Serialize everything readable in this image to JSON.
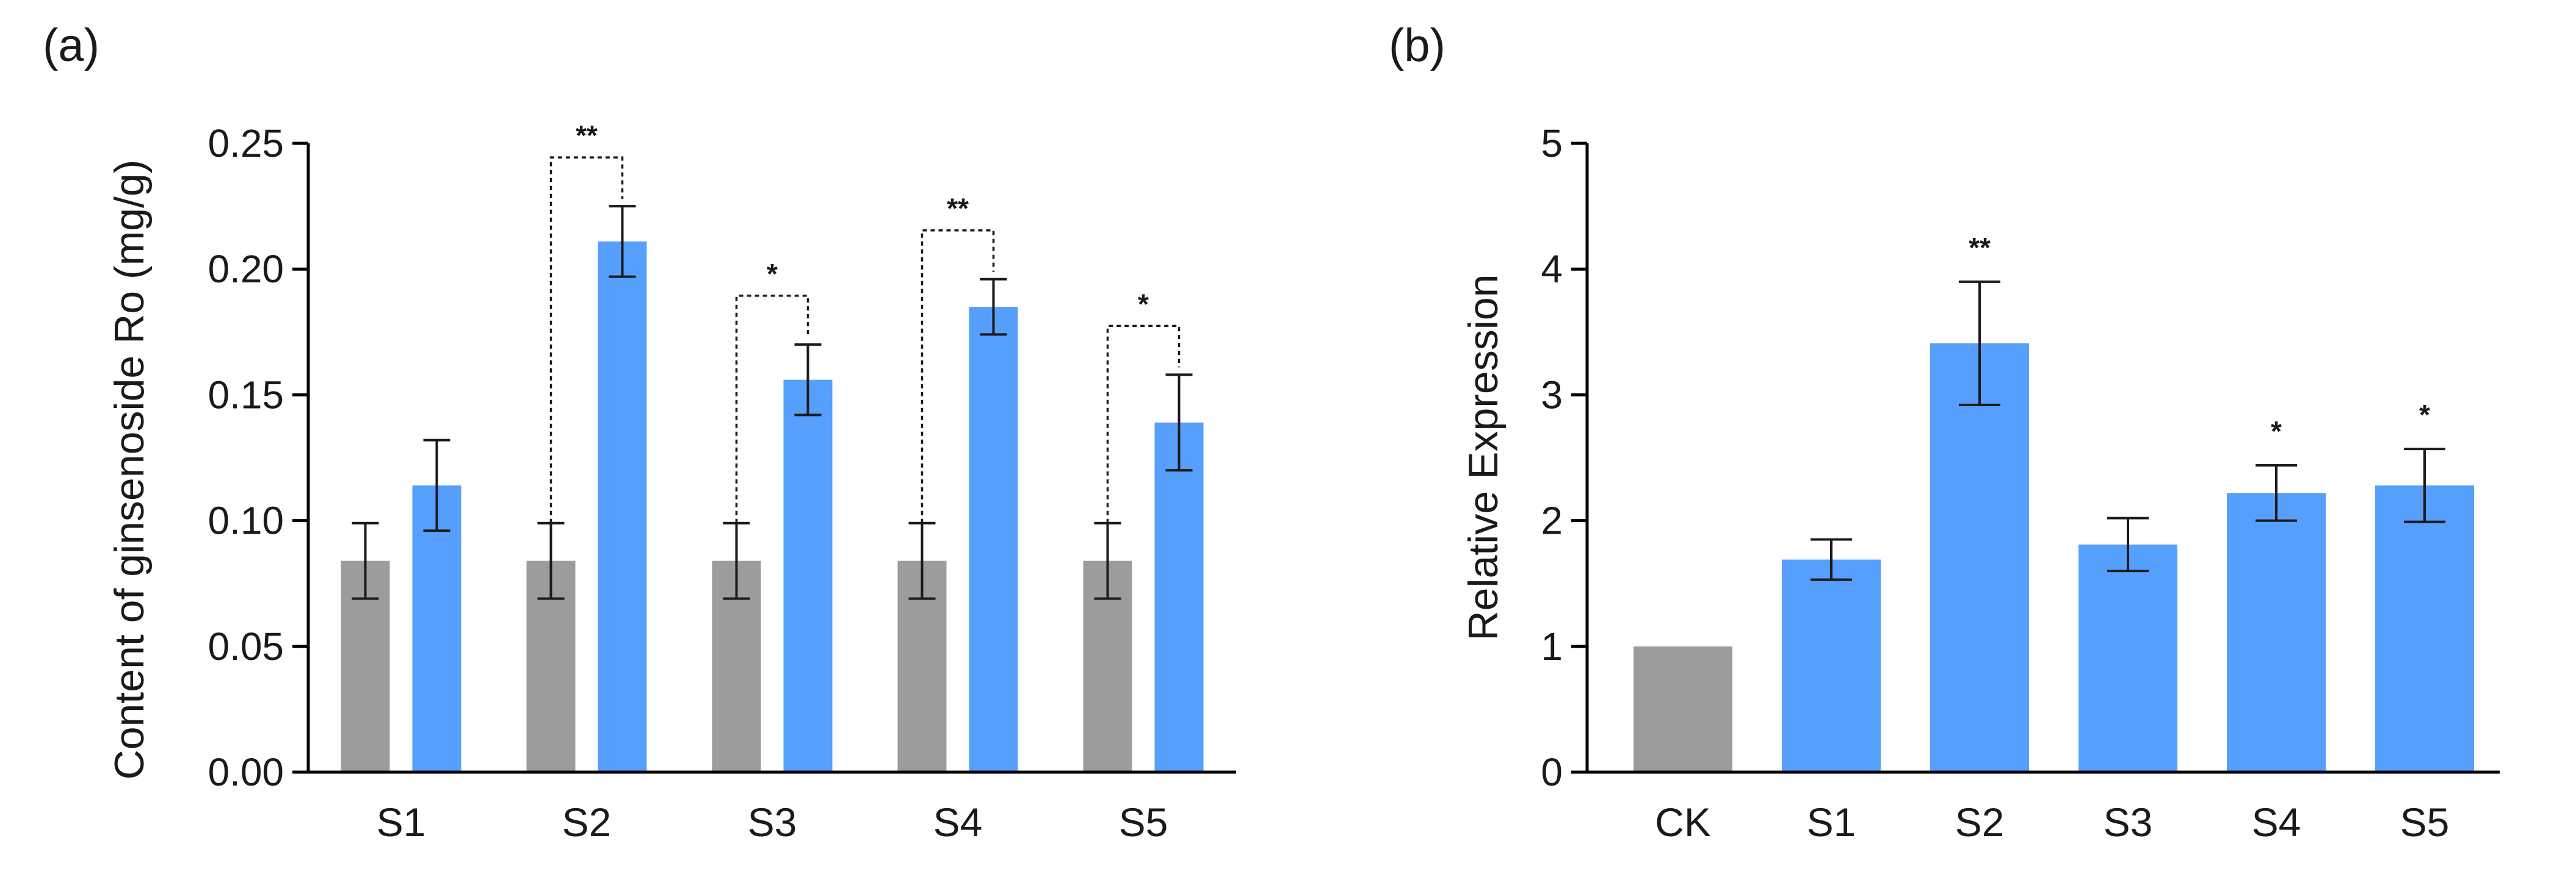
{
  "chart_data": [
    {
      "type": "bar",
      "panel_label": "(a)",
      "categories": [
        "S1",
        "S2",
        "S3",
        "S4",
        "S5"
      ],
      "series": [
        {
          "color": "#9c9c9f",
          "values": [
            0.084,
            0.084,
            0.084,
            0.084,
            0.084
          ],
          "errors": [
            0.015,
            0.015,
            0.015,
            0.015,
            0.015
          ]
        },
        {
          "color": "#569ffd",
          "values": [
            0.114,
            0.211,
            0.156,
            0.185,
            0.139
          ],
          "errors": [
            0.018,
            0.014,
            0.014,
            0.011,
            0.019
          ]
        }
      ],
      "significance": [
        "",
        "**",
        "*",
        "**",
        "*"
      ],
      "ylabel": "Content of ginsenoside Ro (mg/g)",
      "xlabel": "",
      "ylim": [
        0,
        0.25
      ],
      "yticks": [
        "0.00",
        "0.05",
        "0.10",
        "0.15",
        "0.20",
        "0.25"
      ],
      "grid": false,
      "legend": false
    },
    {
      "type": "bar",
      "panel_label": "(b)",
      "categories": [
        "CK",
        "S1",
        "S2",
        "S3",
        "S4",
        "S5"
      ],
      "values": [
        1.0,
        1.69,
        3.41,
        1.81,
        2.22,
        2.28
      ],
      "errors": [
        0,
        0.16,
        0.49,
        0.21,
        0.22,
        0.29
      ],
      "colors": [
        "#9c9c9f",
        "#569ffd",
        "#569ffd",
        "#569ffd",
        "#569ffd",
        "#569ffd"
      ],
      "significance": [
        "",
        "",
        "**",
        "",
        "*",
        "*"
      ],
      "ylabel": "Relative Expression",
      "xlabel": "",
      "ylim": [
        0,
        5
      ],
      "yticks": [
        "0",
        "1",
        "2",
        "3",
        "4",
        "5"
      ],
      "grid": false,
      "legend": false
    }
  ]
}
